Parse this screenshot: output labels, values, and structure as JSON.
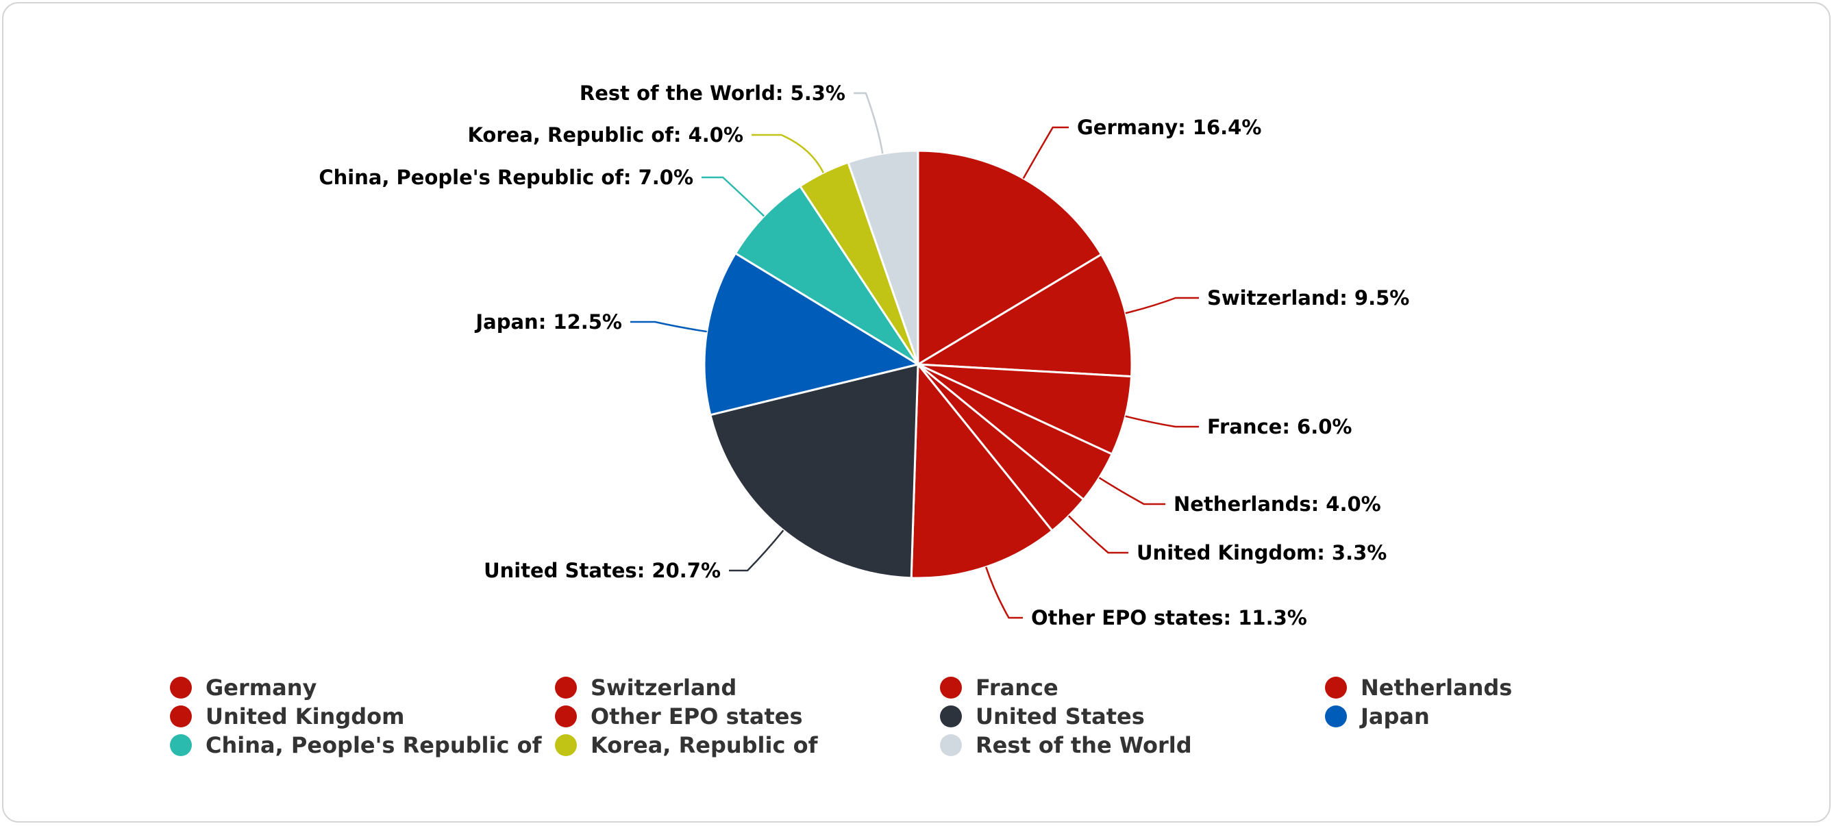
{
  "chart_data": {
    "type": "pie",
    "title": "",
    "legend_position": "bottom",
    "slices": [
      {
        "name": "Germany",
        "value": 16.4,
        "label": "Germany: 16.4%",
        "color": "#bf1107"
      },
      {
        "name": "Switzerland",
        "value": 9.5,
        "label": "Switzerland: 9.5%",
        "color": "#bf1107"
      },
      {
        "name": "France",
        "value": 6.0,
        "label": "France: 6.0%",
        "color": "#bf1107"
      },
      {
        "name": "Netherlands",
        "value": 4.0,
        "label": "Netherlands: 4.0%",
        "color": "#bf1107"
      },
      {
        "name": "United Kingdom",
        "value": 3.3,
        "label": "United Kingdom: 3.3%",
        "color": "#bf1107"
      },
      {
        "name": "Other EPO states",
        "value": 11.3,
        "label": "Other EPO states: 11.3%",
        "color": "#bf1107"
      },
      {
        "name": "United States",
        "value": 20.7,
        "label": "United States: 20.7%",
        "color": "#2d333c"
      },
      {
        "name": "Japan",
        "value": 12.5,
        "label": "Japan: 12.5%",
        "color": "#005cb9"
      },
      {
        "name": "China, People's Republic of",
        "value": 7.0,
        "label": "China, People's Republic of: 7.0%",
        "color": "#2bbaae"
      },
      {
        "name": "Korea, Republic of",
        "value": 4.0,
        "label": "Korea, Republic of: 4.0%",
        "color": "#c1c414"
      },
      {
        "name": "Rest of the World",
        "value": 5.3,
        "label": "Rest of the World: 5.3%",
        "color": "#d1d9e0"
      }
    ]
  }
}
